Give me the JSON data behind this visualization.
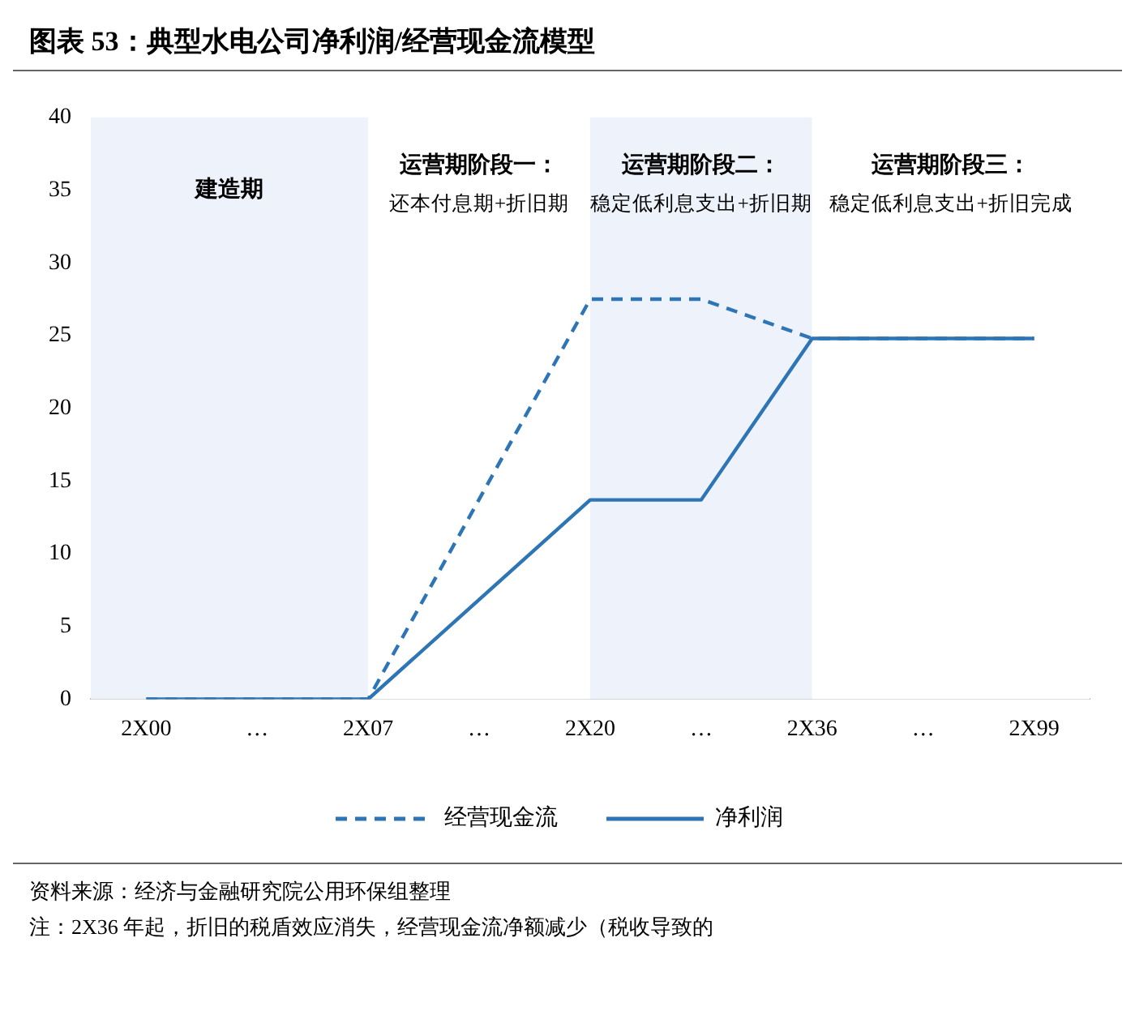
{
  "chart_data": {
    "type": "line",
    "title": "图表 53：典型水电公司净利润/经营现金流模型",
    "categories": [
      "2X00",
      "…",
      "2X07",
      "…",
      "2X20",
      "…",
      "2X36",
      "…",
      "2X99"
    ],
    "series": [
      {
        "name": "经营现金流",
        "color": "#2e75b6",
        "line_style": "dashed",
        "values": [
          0,
          0,
          0,
          null,
          27.5,
          27.5,
          24.8,
          null,
          24.8
        ]
      },
      {
        "name": "净利润",
        "color": "#2e75b6",
        "line_style": "solid",
        "values": [
          0,
          0,
          0,
          null,
          13.7,
          13.7,
          24.8,
          null,
          24.8
        ]
      }
    ],
    "ylim": [
      0,
      40
    ],
    "yticks": [
      0,
      5,
      10,
      15,
      20,
      25,
      30,
      35,
      40
    ],
    "grid": false,
    "legend": "bottom",
    "marker": "none",
    "bands": [
      {
        "axis": "x",
        "from": "2X00",
        "to": "2X07",
        "label": "建造期",
        "color": "#eef3fb"
      },
      {
        "axis": "x",
        "from": "2X07",
        "to": "2X20",
        "label": "运营期阶段一：还本付息期+折旧期",
        "color": "#ffffff"
      },
      {
        "axis": "x",
        "from": "2X20",
        "to": "2X36",
        "label": "运营期阶段二：稳定低利息支出+折旧期",
        "color": "#eef3fb"
      },
      {
        "axis": "x",
        "from": "2X36",
        "to": "2X99",
        "label": "运营期阶段三：稳定低利息支出+折旧完成",
        "color": "#ffffff"
      }
    ],
    "annotations": [
      "资料来源：经济与金融研究院公用环保组整理",
      "注：2X36 年起，折旧的税盾效应消失，经营现金流净额减少（税收导致的"
    ]
  }
}
